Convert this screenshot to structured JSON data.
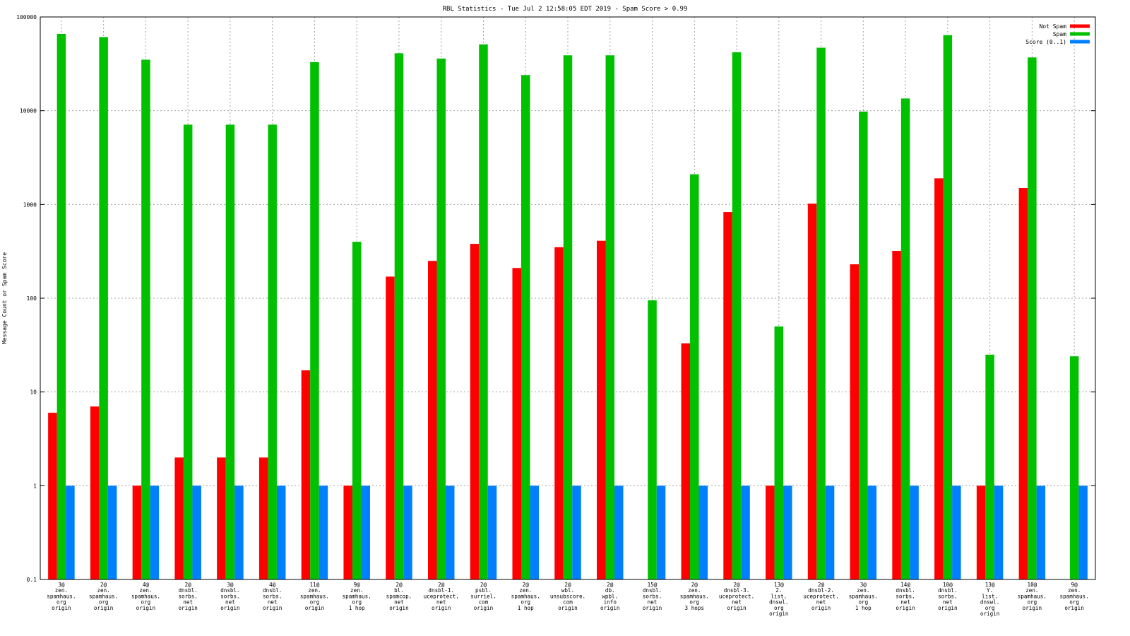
{
  "chart_data": {
    "type": "bar",
    "title": "RBL Statistics - Tue Jul  2 12:58:05 EDT 2019 - Spam Score > 0.99",
    "ylabel": "Message Count or Spam Score",
    "xlabel": "",
    "yscale": "log",
    "ylim": [
      0.1,
      100000
    ],
    "y_ticks": [
      "0.1",
      "1",
      "10",
      "100",
      "1000",
      "10000",
      "100000"
    ],
    "grid": true,
    "legend_position": "top-right",
    "categories": [
      [
        "3@",
        "zen.",
        "spamhaus.",
        "org",
        "origin"
      ],
      [
        "2@",
        "zen.",
        "spamhaus.",
        "org",
        "origin"
      ],
      [
        "4@",
        "zen.",
        "spamhaus.",
        "org",
        "origin"
      ],
      [
        "2@",
        "dnsbl.",
        "sorbs.",
        "net",
        "origin"
      ],
      [
        "3@",
        "dnsbl.",
        "sorbs.",
        "net",
        "origin"
      ],
      [
        "4@",
        "dnsbl.",
        "sorbs.",
        "net",
        "origin"
      ],
      [
        "11@",
        "zen.",
        "spamhaus.",
        "org",
        "origin"
      ],
      [
        "9@",
        "zen.",
        "spamhaus.",
        "org",
        "1 hop"
      ],
      [
        "2@",
        "bl.",
        "spamcop.",
        "net",
        "origin"
      ],
      [
        "2@",
        "dnsbl-1.",
        "uceprotect.",
        "net",
        "origin"
      ],
      [
        "2@",
        "psbl.",
        "surriel.",
        "com",
        "origin"
      ],
      [
        "2@",
        "zen.",
        "spamhaus.",
        "org",
        "1 hop"
      ],
      [
        "2@",
        "wbl.",
        "unsubscore.",
        "com",
        "origin"
      ],
      [
        "2@",
        "db.",
        "wpbl.",
        "info",
        "origin"
      ],
      [
        "15@",
        "dnsbl.",
        "sorbs.",
        "net",
        "origin"
      ],
      [
        "2@",
        "zen.",
        "spamhaus.",
        "org",
        "3 hops"
      ],
      [
        "2@",
        "dnsbl-3.",
        "uceprotect.",
        "net",
        "origin"
      ],
      [
        "13@",
        "2.",
        "list.",
        "dnswl.",
        "org",
        "origin"
      ],
      [
        "2@",
        "dnsbl-2.",
        "uceprotect.",
        "net",
        "origin"
      ],
      [
        "3@",
        "zen.",
        "spamhaus.",
        "org",
        "1 hop"
      ],
      [
        "14@",
        "dnsbl.",
        "sorbs.",
        "net",
        "origin"
      ],
      [
        "10@",
        "dnsbl.",
        "sorbs.",
        "net",
        "origin"
      ],
      [
        "13@",
        "Y.",
        "list.",
        "dnswl.",
        "org",
        "origin"
      ],
      [
        "10@",
        "zen.",
        "spamhaus.",
        "org",
        "origin"
      ],
      [
        "9@",
        "zen.",
        "spamhaus.",
        "org",
        "origin"
      ]
    ],
    "series": [
      {
        "name": "Not Spam",
        "color": "#ff0000",
        "values": [
          6,
          7,
          1,
          2,
          2,
          2,
          17,
          1,
          170,
          250,
          380,
          210,
          350,
          410,
          null,
          33,
          830,
          1,
          1020,
          230,
          320,
          1900,
          1,
          1500,
          null
        ]
      },
      {
        "name": "Spam",
        "color": "#00c000",
        "values": [
          66000,
          61000,
          35000,
          7100,
          7100,
          7100,
          33000,
          400,
          41000,
          36000,
          51000,
          24000,
          39000,
          39000,
          95,
          2100,
          42000,
          50,
          47000,
          9800,
          13500,
          64000,
          25,
          37000,
          24
        ]
      },
      {
        "name": "Score (0..1)",
        "color": "#0080ff",
        "values": [
          1,
          1,
          1,
          1,
          1,
          1,
          1,
          1,
          1,
          1,
          1,
          1,
          1,
          1,
          1,
          1,
          1,
          1,
          1,
          1,
          1,
          1,
          1,
          1,
          1
        ]
      }
    ]
  }
}
